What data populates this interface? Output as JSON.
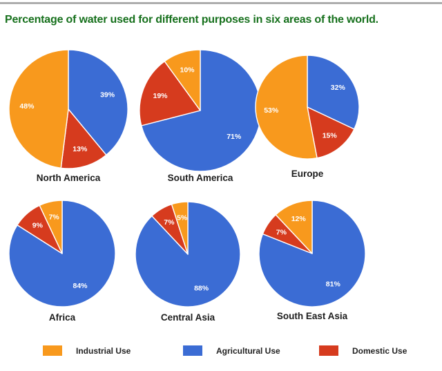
{
  "page": {
    "title": "Percentage of water used for different purposes in six areas of the world.",
    "title_color": "#16701c",
    "top_rule_color": "#adadad",
    "background_color": "#ffffff"
  },
  "chart_data": {
    "type": "pie",
    "title": "Percentage of water used for different purposes in six areas of the world.",
    "unit": "%",
    "slice_order": [
      "Agricultural Use",
      "Domestic Use",
      "Industrial Use"
    ],
    "slice_colors": {
      "Agricultural Use": "#3b6cd4",
      "Domestic Use": "#d63b1e",
      "Industrial Use": "#f8991d"
    },
    "slice_label_color": "#ffffff",
    "start_angle_deg": 0,
    "direction": "clockwise",
    "charts": [
      {
        "area": "North America",
        "values": {
          "Agricultural Use": 39,
          "Domestic Use": 13,
          "Industrial Use": 48
        }
      },
      {
        "area": "South America",
        "values": {
          "Agricultural Use": 71,
          "Domestic Use": 19,
          "Industrial Use": 10
        }
      },
      {
        "area": "Europe",
        "values": {
          "Agricultural Use": 32,
          "Domestic Use": 15,
          "Industrial Use": 53
        }
      },
      {
        "area": "Africa",
        "values": {
          "Agricultural Use": 84,
          "Domestic Use": 9,
          "Industrial Use": 7
        }
      },
      {
        "area": "Central Asia",
        "values": {
          "Agricultural Use": 88,
          "Domestic Use": 7,
          "Industrial Use": 5
        }
      },
      {
        "area": "South East Asia",
        "values": {
          "Agricultural Use": 81,
          "Domestic Use": 7,
          "Industrial Use": 12
        }
      }
    ]
  },
  "legend": {
    "items": [
      {
        "label": "Industrial Use",
        "color": "#f8991d"
      },
      {
        "label": "Agricultural Use",
        "color": "#3b6cd4"
      },
      {
        "label": "Domestic Use",
        "color": "#d63b1e"
      }
    ]
  }
}
